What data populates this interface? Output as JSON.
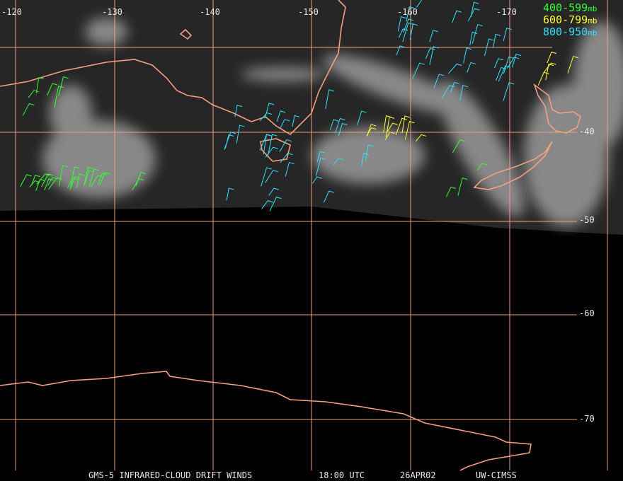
{
  "longitude_labels": [
    "-120",
    "-130",
    "-140",
    "-150",
    "-160",
    "-170"
  ],
  "latitude_labels": [
    "-40",
    "-50",
    "-60",
    "-70"
  ],
  "legend": [
    {
      "range": "400-599",
      "unit": "mb"
    },
    {
      "range": "600-799",
      "unit": "mb"
    },
    {
      "range": "800-950",
      "unit": "mb"
    }
  ],
  "footer": {
    "product": "GMS-5 INFRARED-CLOUD DRIFT WINDS",
    "time": "18:00 UTC",
    "date": "26APR02",
    "source": "UW-CIMSS"
  }
}
